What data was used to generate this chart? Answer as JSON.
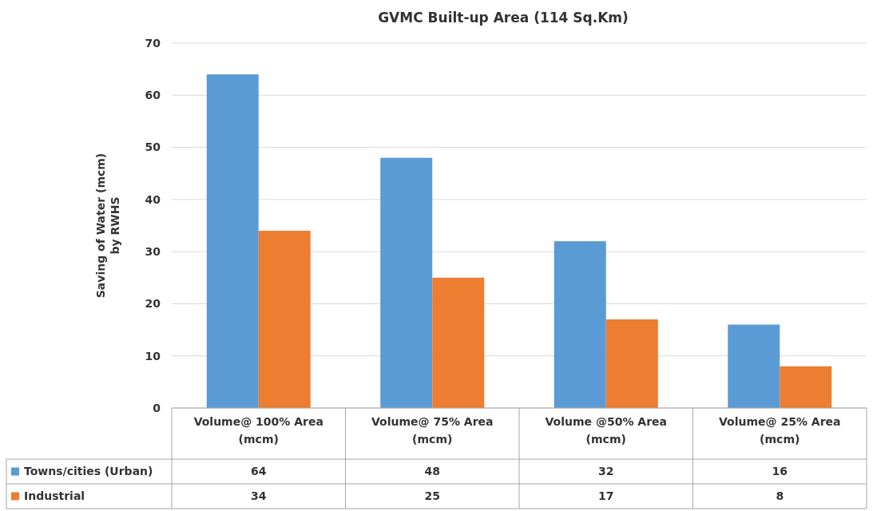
{
  "chart_data": {
    "type": "bar",
    "title": "GVMC Built-up Area (114 Sq.Km)",
    "ylabel": "Saving of Water (mcm)\nby RWHS",
    "categories": [
      "Volume@ 100% Area (mcm)",
      "Volume@ 75% Area (mcm)",
      "Volume @50% Area (mcm)",
      "Volume@ 25% Area (mcm)"
    ],
    "series": [
      {
        "name": "Towns/cities (Urban)",
        "color": "#5b9bd5",
        "values": [
          64,
          48,
          32,
          16
        ]
      },
      {
        "name": "Industrial",
        "color": "#ed7d31",
        "values": [
          34,
          25,
          17,
          8
        ]
      }
    ],
    "ylim": [
      0,
      70
    ],
    "yticks": [
      0,
      10,
      20,
      30,
      40,
      50,
      60,
      70
    ],
    "grid": "y",
    "data_labels": true,
    "legend": "bottom left"
  }
}
